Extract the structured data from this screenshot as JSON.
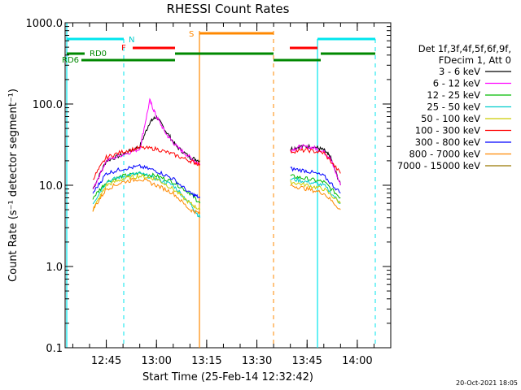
{
  "chart_data": {
    "type": "line",
    "title": "RHESSI Count Rates",
    "xlabel": "Start Time (25-Feb-14 12:32:42)",
    "ylabel": "Count Rate (s⁻¹ detector segment⁻¹)",
    "yscale": "log",
    "ylim": [
      0.1,
      1000
    ],
    "xlim": [
      "12:32:42",
      "14:10:00"
    ],
    "x_tick_labels": [
      "12:45",
      "13:00",
      "13:15",
      "13:30",
      "13:45",
      "14:00"
    ],
    "y_tick_labels": [
      "0.1",
      "1.0",
      "10.0",
      "100.0",
      "1000.0"
    ],
    "legend_header": [
      "Det 1f,3f,4f,5f,6f,9f,",
      "FDecim 1, Att 0"
    ],
    "footer_date": "20-Oct-2021 18:05",
    "series": [
      {
        "name": "3 - 6 keV",
        "color": "#000000",
        "segments": [
          {
            "x": [
              "12:41",
              "12:45",
              "12:50",
              "12:55",
              "12:58",
              "13:00",
              "13:03",
              "13:06",
              "13:10",
              "13:13"
            ],
            "y": [
              9,
              20,
              24,
              30,
              60,
              70,
              45,
              30,
              22,
              20
            ]
          },
          {
            "x": [
              "13:40",
              "13:43",
              "13:47",
              "13:50",
              "13:52",
              "13:55"
            ],
            "y": [
              28,
              30,
              30,
              27,
              22,
              10
            ]
          }
        ]
      },
      {
        "name": "6 - 12 keV",
        "color": "#ff00ff",
        "segments": [
          {
            "x": [
              "12:41",
              "12:45",
              "12:50",
              "12:55",
              "12:58",
              "13:00",
              "13:03",
              "13:06",
              "13:10",
              "13:13"
            ],
            "y": [
              9,
              20,
              24,
              28,
              110,
              70,
              42,
              30,
              22,
              18
            ]
          },
          {
            "x": [
              "13:40",
              "13:43",
              "13:47",
              "13:50",
              "13:52",
              "13:55"
            ],
            "y": [
              27,
              30,
              29,
              26,
              21,
              10
            ]
          }
        ]
      },
      {
        "name": "12 - 25 keV",
        "color": "#00bb00",
        "segments": [
          {
            "x": [
              "12:41",
              "12:45",
              "12:50",
              "12:55",
              "13:00",
              "13:05",
              "13:10",
              "13:13"
            ],
            "y": [
              7,
              11,
              13,
              14,
              13,
              11,
              8,
              6
            ]
          },
          {
            "x": [
              "13:40",
              "13:45",
              "13:50",
              "13:55"
            ],
            "y": [
              13,
              12,
              11,
              7
            ]
          }
        ]
      },
      {
        "name": "25 - 50 keV",
        "color": "#00cccc",
        "segments": [
          {
            "x": [
              "12:41",
              "12:45",
              "12:50",
              "12:55",
              "13:00",
              "13:05",
              "13:10",
              "13:13"
            ],
            "y": [
              6,
              11,
              13,
              14,
              12,
              10,
              6,
              4
            ]
          },
          {
            "x": [
              "13:40",
              "13:45",
              "13:50",
              "13:55"
            ],
            "y": [
              12,
              11,
              10,
              6
            ]
          }
        ]
      },
      {
        "name": "50 - 100 keV",
        "color": "#cccc00",
        "segments": [
          {
            "x": [
              "12:41",
              "12:45",
              "12:50",
              "12:55",
              "13:00",
              "13:05",
              "13:10",
              "13:13"
            ],
            "y": [
              5,
              10,
              12,
              13,
              12,
              9,
              6,
              5
            ]
          },
          {
            "x": [
              "13:40",
              "13:45",
              "13:50",
              "13:55"
            ],
            "y": [
              11,
              10,
              9,
              6
            ]
          }
        ]
      },
      {
        "name": "100 - 300 keV",
        "color": "#ff0000",
        "segments": [
          {
            "x": [
              "12:41",
              "12:45",
              "12:50",
              "12:55",
              "13:00",
              "13:05",
              "13:10",
              "13:13"
            ],
            "y": [
              12,
              22,
              26,
              29,
              28,
              24,
              20,
              18
            ]
          },
          {
            "x": [
              "13:40",
              "13:45",
              "13:50",
              "13:55"
            ],
            "y": [
              26,
              27,
              25,
              14
            ]
          }
        ]
      },
      {
        "name": "300 - 800 keV",
        "color": "#0000ff",
        "segments": [
          {
            "x": [
              "12:41",
              "12:45",
              "12:50",
              "12:55",
              "13:00",
              "13:05",
              "13:10",
              "13:13"
            ],
            "y": [
              8,
              14,
              16,
              17,
              15,
              12,
              8,
              7
            ]
          },
          {
            "x": [
              "13:40",
              "13:45",
              "13:50",
              "13:55"
            ],
            "y": [
              16,
              15,
              13,
              8
            ]
          }
        ]
      },
      {
        "name": "800 - 7000 keV",
        "color": "#ff8800",
        "segments": [
          {
            "x": [
              "12:41",
              "12:45",
              "12:50",
              "12:55",
              "13:00",
              "13:05",
              "13:10",
              "13:13"
            ],
            "y": [
              5,
              9,
              11,
              12,
              10,
              8,
              5,
              4.5
            ]
          },
          {
            "x": [
              "13:40",
              "13:45",
              "13:50",
              "13:55"
            ],
            "y": [
              10,
              9,
              8,
              5
            ]
          }
        ]
      },
      {
        "name": "7000 - 15000 keV",
        "color": "#997700",
        "segments": []
      }
    ],
    "annotations": [
      {
        "label": "N",
        "color": "#00cccc",
        "type": "vertical-dashed",
        "x": "12:48"
      },
      {
        "label": "S",
        "color": "#ff8800",
        "type": "vertical-solid",
        "x": "13:13"
      },
      {
        "label": "F",
        "color": "#ff0000",
        "type": "segment-marker",
        "x": "12:53"
      },
      {
        "label": "RD0",
        "color": "#008800",
        "type": "segment-marker",
        "x": "12:38"
      },
      {
        "label": "RD6",
        "color": "#008800",
        "type": "segment-marker",
        "x": "12:32"
      }
    ]
  }
}
